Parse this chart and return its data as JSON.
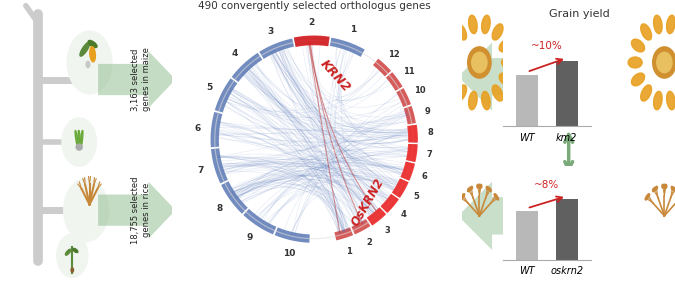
{
  "title_center": "490 convergently selected orthologus genes",
  "title_right": "Grain yield",
  "left_text_top": "3,163 selected\ngenes in maize",
  "left_text_bottom": "18,755 selected\ngenes in rice",
  "bar_chart_top": {
    "categories": [
      "WT",
      "km2"
    ],
    "values": [
      0.55,
      0.7
    ],
    "bar_colors": [
      "#b8b8b8",
      "#606060"
    ],
    "annotation": "~10%",
    "ylim": [
      0,
      1.0
    ]
  },
  "bar_chart_bottom": {
    "categories": [
      "WT",
      "oskrn2"
    ],
    "values": [
      0.52,
      0.65
    ],
    "bar_colors": [
      "#b8b8b8",
      "#606060"
    ],
    "annotation": "~8%",
    "ylim": [
      0,
      1.0
    ]
  },
  "chord_num_maize": 10,
  "chord_num_rice": 12,
  "krn2_label": "KRN2",
  "oskrn2_label": "OsKRN2",
  "bg_color": "#ffffff",
  "chord_line_color": "#5577bb",
  "chord_line_alpha": 0.15,
  "maize_arc_color": "#4466aa",
  "rice_arc_color": "#cc3333",
  "highlight_arc_color": "#ee3333",
  "annotation_color": "#cc2222",
  "arrow_color": "#88aa88",
  "green_arrow_color": "#7aaa7a",
  "branch_color": "#cccccc",
  "text_color": "#333333"
}
